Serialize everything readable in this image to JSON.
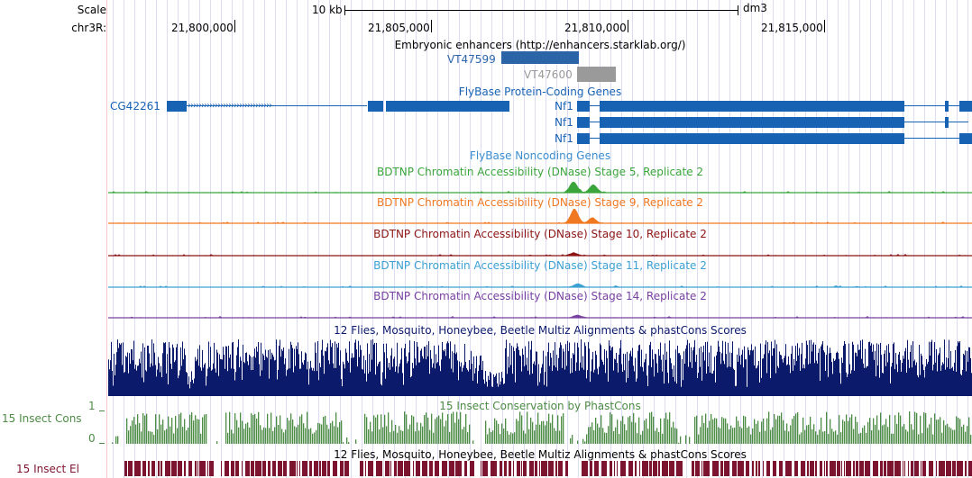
{
  "scale_label": "Scale",
  "scale_text": "10 kb",
  "assembly": "dm3",
  "chrom_label": "chr3R:",
  "ruler_ticks": [
    "21,800,000",
    "21,805,000",
    "21,810,000",
    "21,815,000"
  ],
  "enhancer_track": {
    "title": "Embryonic enhancers (http://enhancers.starklab.org/)",
    "items": [
      "VT47599",
      "VT47600"
    ]
  },
  "coding_track": {
    "title": "FlyBase Protein-Coding Genes",
    "genes": [
      "CG42261",
      "Nf1",
      "Nf1",
      "Nf1"
    ]
  },
  "noncoding_track": {
    "title": "FlyBase Noncoding Genes"
  },
  "dnase_tracks": [
    {
      "title": "BDTNP Chromatin Accessibility (DNase) Stage 5, Replicate 2",
      "color": "#3aa53a"
    },
    {
      "title": "BDTNP Chromatin Accessibility (DNase) Stage 9, Replicate 2",
      "color": "#f07820"
    },
    {
      "title": "BDTNP Chromatin Accessibility (DNase) Stage 10, Replicate 2",
      "color": "#8c1414"
    },
    {
      "title": "BDTNP Chromatin Accessibility (DNase) Stage 11, Replicate 2",
      "color": "#3ca0d2"
    },
    {
      "title": "BDTNP Chromatin Accessibility (DNase) Stage 14, Replicate 2",
      "color": "#7840a0"
    }
  ],
  "multiz_track": {
    "title": "12 Flies, Mosquito, Honeybee, Beetle Multiz Alignments & phastCons Scores",
    "color": "#0c1a6c"
  },
  "phastcons_track": {
    "title": "15 Insect Conservation by PhastCons",
    "side_label": "15 Insect Cons",
    "axis_max": "1",
    "axis_min": "0",
    "color": "#4c8c44"
  },
  "elements_track": {
    "title": "12 Flies, Mosquito, Honeybee, Beetle Multiz Alignments & phastCons Scores",
    "side_label": "15 Insect El",
    "color": "#7c1430"
  },
  "colors": {
    "gene": "#1862b4",
    "enhancer_dark": "#2c64a8",
    "enhancer_light": "#9a9a9a"
  }
}
